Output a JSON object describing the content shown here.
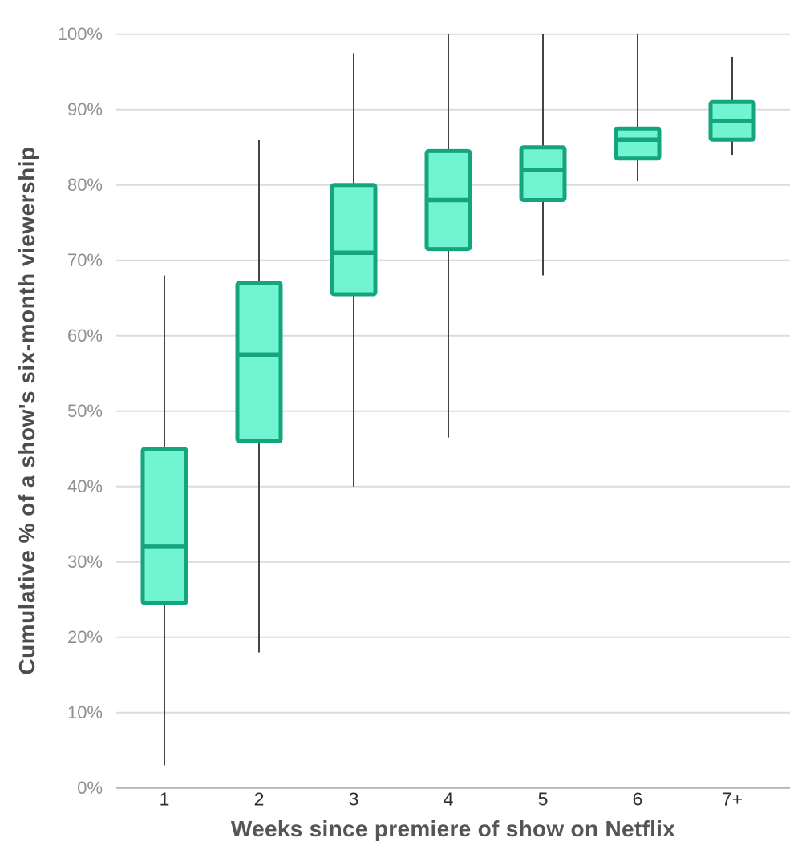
{
  "chart_data": {
    "type": "box",
    "title": "",
    "xlabel": "Weeks since premiere of show on Netflix",
    "ylabel": "Cumulative % of a show's six-month viewership",
    "categories": [
      "1",
      "2",
      "3",
      "4",
      "5",
      "6",
      "7+"
    ],
    "y_ticks": [
      0,
      10,
      20,
      30,
      40,
      50,
      60,
      70,
      80,
      90,
      100
    ],
    "y_tick_labels": [
      "0%",
      "10%",
      "20%",
      "30%",
      "40%",
      "50%",
      "60%",
      "70%",
      "80%",
      "90%",
      "100%"
    ],
    "ylim": [
      0,
      100
    ],
    "grid": true,
    "legend": "none",
    "boxes": [
      {
        "category": "1",
        "whisker_low": 3,
        "q1": 24.5,
        "median": 32,
        "q3": 45,
        "whisker_high": 68
      },
      {
        "category": "2",
        "whisker_low": 18,
        "q1": 46,
        "median": 57.5,
        "q3": 67,
        "whisker_high": 86
      },
      {
        "category": "3",
        "whisker_low": 40,
        "q1": 65.5,
        "median": 71,
        "q3": 80,
        "whisker_high": 97.5
      },
      {
        "category": "4",
        "whisker_low": 46.5,
        "q1": 71.5,
        "median": 78,
        "q3": 84.5,
        "whisker_high": 100
      },
      {
        "category": "5",
        "whisker_low": 68,
        "q1": 78,
        "median": 82,
        "q3": 85,
        "whisker_high": 100
      },
      {
        "category": "6",
        "whisker_low": 80.5,
        "q1": 83.5,
        "median": 86,
        "q3": 87.5,
        "whisker_high": 100
      },
      {
        "category": "7+",
        "whisker_low": 84,
        "q1": 86,
        "median": 88.5,
        "q3": 91,
        "whisker_high": 97
      }
    ],
    "colors": {
      "box_fill": "#70f5d0",
      "box_border": "#14a57e",
      "whisker": "#434343",
      "gridline": "#dcdcdc",
      "axis_line": "#b3b3b3",
      "y_tick_label": "#8f8f8f",
      "x_tick_label": "#2e2e2e",
      "axis_title": "#4d4d4d"
    }
  }
}
